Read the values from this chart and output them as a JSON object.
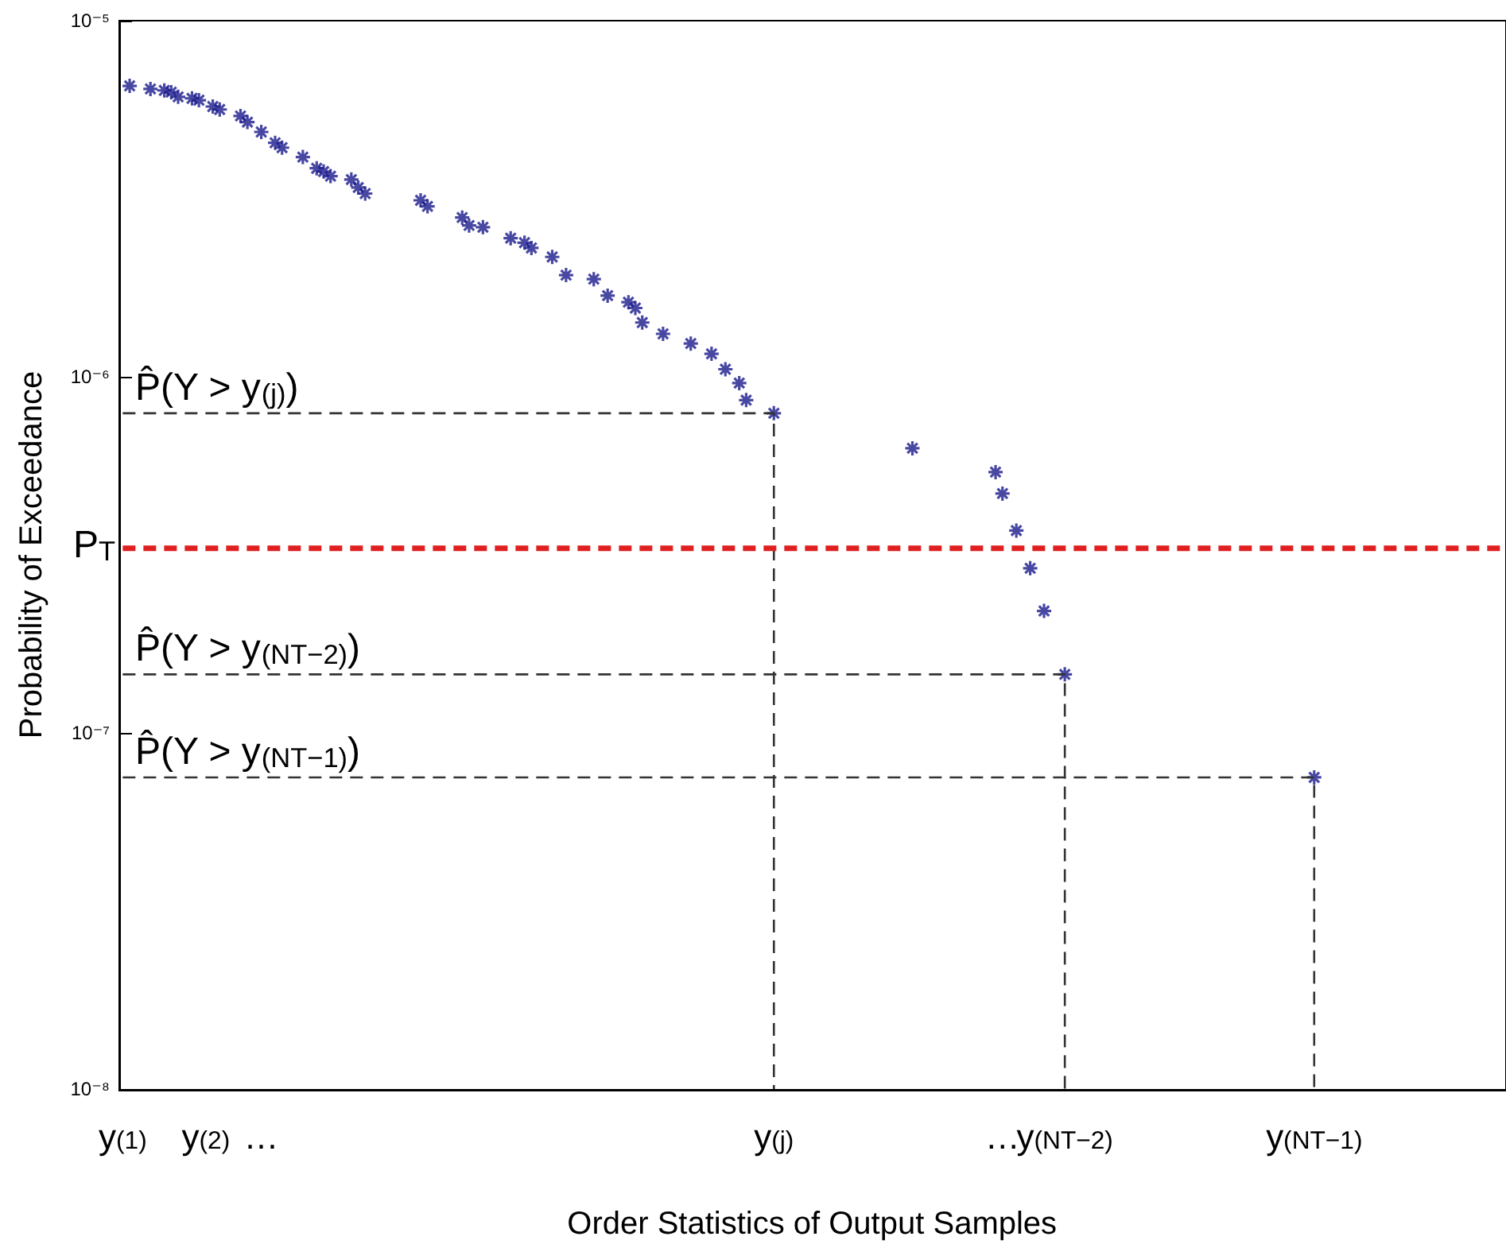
{
  "chart_data": {
    "type": "scatter",
    "xlabel": "Order Statistics of Output Samples",
    "ylabel": "Probability of Exceedance",
    "log": "y",
    "grid": false,
    "marker": "cross",
    "ylim": [
      1e-08,
      1e-05
    ],
    "yticks": [
      {
        "value": 1e-08,
        "label": "10⁻⁸"
      },
      {
        "value": 1e-07,
        "label": "10⁻⁷"
      },
      {
        "value": 1e-06,
        "label": "10⁻⁶"
      },
      {
        "value": 1e-05,
        "label": "10⁻⁵"
      }
    ],
    "categories": [
      "y$_{(1)}$",
      null,
      null,
      null,
      null,
      null,
      null,
      null,
      null,
      null,
      null,
      null,
      "y$_{(2)}$",
      null,
      null,
      null,
      null,
      null,
      null,
      null,
      "…",
      null,
      null,
      null,
      null,
      null,
      null,
      null,
      null,
      null,
      null,
      null,
      null,
      null,
      null,
      null,
      null,
      null,
      null,
      null,
      null,
      null,
      null,
      null,
      null,
      null,
      null,
      null,
      null,
      null,
      null,
      null,
      null,
      null,
      null,
      null,
      null,
      null,
      null,
      null,
      null,
      null,
      null,
      null,
      null,
      null,
      null,
      null,
      null,
      null,
      null,
      null,
      null,
      null,
      null,
      null,
      null,
      null,
      null,
      null,
      null,
      null,
      null,
      null,
      null,
      null,
      null,
      null,
      null,
      null,
      null,
      null,
      null,
      null,
      "y$_{(j)}$",
      null,
      null,
      null,
      null,
      null,
      null,
      null,
      null,
      null,
      null,
      null,
      null,
      null,
      null,
      null,
      null,
      null,
      null,
      null,
      null,
      null,
      null,
      null,
      null,
      null,
      null,
      null,
      null,
      null,
      null,
      null,
      null,
      "…",
      null,
      null,
      null,
      null,
      null,
      null,
      null,
      null,
      "y$_{(NT−2)}$",
      null,
      null,
      null,
      null,
      null,
      null,
      null,
      null,
      null,
      null,
      null,
      null,
      null,
      null,
      null,
      null,
      null,
      null,
      null,
      null,
      null,
      null,
      null,
      null,
      null,
      null,
      null,
      null,
      null,
      null,
      null,
      null,
      null,
      null,
      null,
      "y$_{(NT−1)}$",
      null,
      null,
      null,
      null,
      null,
      null,
      null,
      null,
      null,
      null,
      null,
      null,
      null,
      null,
      null,
      null,
      null,
      null,
      null,
      null,
      null,
      null,
      null,
      null,
      null,
      null,
      null
    ],
    "series": [
      {
        "color": "#1a1a8c",
        "values": [
          null,
          6.56e-06,
          null,
          null,
          6.43e-06,
          null,
          6.37e-06,
          6.3e-06,
          6.11e-06,
          null,
          6.05e-06,
          5.98e-06,
          null,
          5.74e-06,
          5.63e-06,
          null,
          null,
          5.4e-06,
          5.19e-06,
          null,
          4.87e-06,
          null,
          4.54e-06,
          4.4e-06,
          null,
          null,
          4.14e-06,
          null,
          3.85e-06,
          3.77e-06,
          3.66e-06,
          null,
          null,
          3.58e-06,
          3.4e-06,
          3.27e-06,
          null,
          null,
          null,
          null,
          null,
          null,
          null,
          3.13e-06,
          3.01e-06,
          null,
          null,
          null,
          null,
          2.8e-06,
          2.66e-06,
          null,
          2.63e-06,
          null,
          null,
          null,
          2.45e-06,
          null,
          2.38e-06,
          2.3e-06,
          null,
          null,
          2.17e-06,
          null,
          1.93e-06,
          null,
          null,
          null,
          1.88e-06,
          null,
          1.69e-06,
          null,
          null,
          1.62e-06,
          1.56e-06,
          1.42e-06,
          null,
          null,
          1.32e-06,
          null,
          null,
          null,
          1.24e-06,
          null,
          null,
          1.16e-06,
          null,
          1.05e-06,
          null,
          9.6e-07,
          8.6e-07,
          null,
          null,
          null,
          7.9e-07,
          null,
          null,
          null,
          null,
          null,
          null,
          null,
          null,
          null,
          null,
          null,
          null,
          null,
          null,
          null,
          null,
          null,
          null,
          null,
          6.3e-07,
          null,
          null,
          null,
          null,
          null,
          null,
          null,
          null,
          null,
          null,
          null,
          5.4e-07,
          4.7e-07,
          null,
          3.7e-07,
          null,
          2.9e-07,
          null,
          2.2e-07,
          null,
          null,
          1.46e-07,
          null,
          null,
          null,
          null,
          null,
          null,
          null,
          null,
          null,
          null,
          null,
          null,
          null,
          null,
          null,
          null,
          null,
          null,
          null,
          null,
          null,
          null,
          null,
          null,
          null,
          null,
          null,
          null,
          null,
          null,
          null,
          null,
          null,
          null,
          null,
          7.5e-08,
          null,
          null,
          null,
          null,
          null,
          null,
          null,
          null,
          null,
          null,
          null,
          null,
          null,
          null,
          null,
          null,
          null,
          null,
          null,
          null,
          null,
          null,
          null,
          null,
          null,
          null,
          null
        ]
      },
      {
        "type": "line",
        "color": "#333333",
        "marker": "none",
        "line_style": "dashed",
        "x": [
          "y$_{(1)}$",
          "y$_{(j)}$",
          "y$_{(j)}$"
        ],
        "values": [
          7.9e-07,
          7.9e-07,
          1e-08
        ]
      },
      {
        "type": "line",
        "color": "#333333",
        "marker": "none",
        "line_style": "dashed",
        "x": [
          "y$_{(1)}$",
          "y$_{(NT−2)}$",
          "y$_{(NT−2)}$"
        ],
        "values": [
          1.46e-07,
          1.46e-07,
          1e-08
        ]
      },
      {
        "type": "line",
        "color": "#333333",
        "marker": "none",
        "line_style": "dashed",
        "x": [
          "y$_{(1)}$",
          "y$_{(NT−1)}$",
          "y$_{(NT−1)}$"
        ],
        "values": [
          7.5e-08,
          7.5e-08,
          1e-08
        ]
      }
    ],
    "ref_lines": [
      {
        "axis": "y",
        "value": 3.3e-07,
        "label": "P$_{T}$",
        "color": "#e02020",
        "line_style": "dashed"
      }
    ],
    "annotations": [
      {
        "text": "P̂(Y > y$_{(j)}$)",
        "y": 7.9e-07
      },
      {
        "text": "P̂(Y > y$_{(NT−2)}$)",
        "y": 1.46e-07
      },
      {
        "text": "P̂(Y > y$_{(NT−1)}$)",
        "y": 7.5e-08
      }
    ]
  }
}
